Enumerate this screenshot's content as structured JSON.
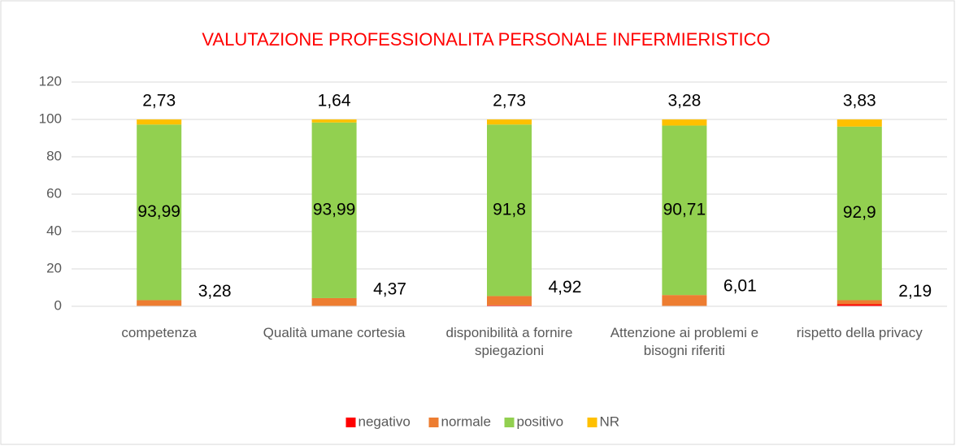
{
  "chart_data": {
    "type": "stacked_bar",
    "title": "VALUTAZIONE PROFESSIONALITA PERSONALE INFERMIERISTICO",
    "categories": [
      "competenza",
      "Qualità umane cortesia",
      "disponibilità a fornire spiegazioni",
      "Attenzione ai problemi e bisogni riferiti",
      "rispetto della privacy"
    ],
    "series": [
      {
        "name": "negativo",
        "color": "#ff0000",
        "values": [
          0,
          0,
          0.55,
          0,
          1.08
        ]
      },
      {
        "name": "normale",
        "color": "#ed7d31",
        "values": [
          3.28,
          4.37,
          4.92,
          6.01,
          2.19
        ],
        "value_labels": [
          "3,28",
          "4,37",
          "4,92",
          "6,01",
          "2,19"
        ]
      },
      {
        "name": "positivo",
        "color": "#92d050",
        "values": [
          93.99,
          93.99,
          91.8,
          90.71,
          92.9
        ],
        "value_labels": [
          "93,99",
          "93,99",
          "91,8",
          "90,71",
          "92,9"
        ]
      },
      {
        "name": "NR",
        "color": "#ffc000",
        "values": [
          2.73,
          1.64,
          2.73,
          3.28,
          3.83
        ],
        "value_labels": [
          "2,73",
          "1,64",
          "2,73",
          "3,28",
          "3,83"
        ]
      }
    ],
    "ylim": [
      0,
      120
    ],
    "yticks": [
      0,
      20,
      40,
      60,
      80,
      100,
      120
    ],
    "grid": true,
    "legend": "bottom"
  }
}
